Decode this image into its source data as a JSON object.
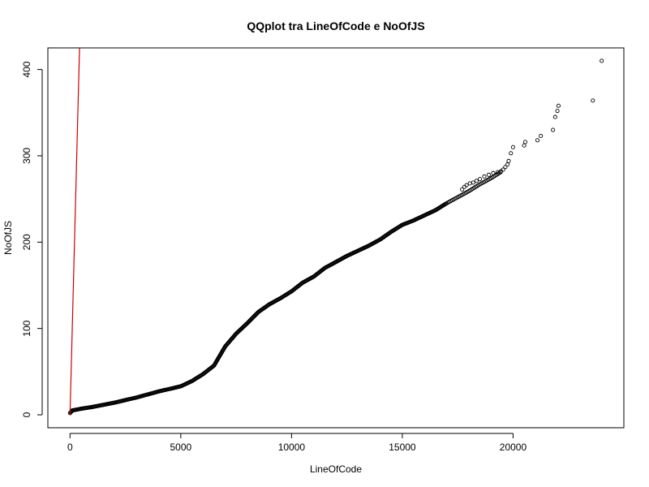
{
  "chart_data": {
    "type": "scatter",
    "title": "QQplot tra LineOfCode e NoOfJS",
    "xlabel": "LineOfCode",
    "ylabel": "NoOfJS",
    "xlim": [
      -1000,
      25000
    ],
    "ylim": [
      -15,
      425
    ],
    "x_ticks": [
      0,
      5000,
      10000,
      15000,
      20000
    ],
    "y_ticks": [
      0,
      100,
      200,
      300,
      400
    ],
    "grid": false,
    "legend": "none",
    "point_color": "#000000",
    "line_color": "#cc0000",
    "reference_line": {
      "x1": 0,
      "y1": 0,
      "x2": 430,
      "y2": 425
    },
    "curve_knots": [
      [
        0,
        2
      ],
      [
        100,
        5
      ],
      [
        500,
        7
      ],
      [
        1000,
        9
      ],
      [
        2000,
        14
      ],
      [
        3000,
        20
      ],
      [
        4000,
        27
      ],
      [
        5000,
        33
      ],
      [
        5500,
        39
      ],
      [
        6000,
        47
      ],
      [
        6500,
        57
      ],
      [
        7000,
        79
      ],
      [
        7500,
        94
      ],
      [
        8000,
        106
      ],
      [
        8500,
        119
      ],
      [
        9000,
        128
      ],
      [
        9500,
        135
      ],
      [
        10000,
        143
      ],
      [
        10500,
        153
      ],
      [
        11000,
        160
      ],
      [
        11500,
        170
      ],
      [
        12000,
        177
      ],
      [
        12500,
        184
      ],
      [
        13000,
        190
      ],
      [
        13500,
        196
      ],
      [
        14000,
        203
      ],
      [
        14500,
        212
      ],
      [
        15000,
        220
      ],
      [
        15500,
        225
      ],
      [
        16000,
        231
      ],
      [
        16500,
        237
      ],
      [
        17000,
        245
      ],
      [
        17500,
        252
      ],
      [
        18000,
        259
      ],
      [
        18500,
        267
      ],
      [
        19000,
        274
      ],
      [
        19500,
        282
      ]
    ],
    "sparse_points": [
      [
        17700,
        261
      ],
      [
        17800,
        264
      ],
      [
        17900,
        266
      ],
      [
        18050,
        268
      ],
      [
        18200,
        269
      ],
      [
        18350,
        271
      ],
      [
        18500,
        273
      ],
      [
        18700,
        276
      ],
      [
        18900,
        278
      ],
      [
        19100,
        280
      ],
      [
        19300,
        281
      ],
      [
        19450,
        282
      ],
      [
        19550,
        284
      ],
      [
        19650,
        287
      ],
      [
        19750,
        290
      ],
      [
        19800,
        294
      ],
      [
        19900,
        303
      ],
      [
        20000,
        310
      ],
      [
        20500,
        312
      ],
      [
        20550,
        316
      ],
      [
        21100,
        318
      ],
      [
        21250,
        323
      ],
      [
        21800,
        330
      ],
      [
        21900,
        345
      ],
      [
        22000,
        352
      ],
      [
        22050,
        358
      ],
      [
        23600,
        364
      ],
      [
        24000,
        410
      ]
    ]
  }
}
